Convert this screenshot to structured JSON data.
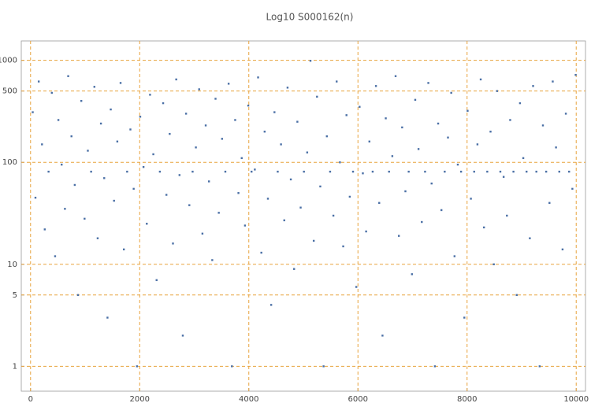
{
  "chart_data": {
    "type": "scatter",
    "title": "Log10 S000162(n)",
    "x": [
      40,
      90,
      150,
      210,
      260,
      330,
      390,
      450,
      510,
      570,
      630,
      690,
      750,
      810,
      870,
      930,
      990,
      1050,
      1110,
      1170,
      1230,
      1290,
      1350,
      1410,
      1470,
      1530,
      1590,
      1650,
      1710,
      1770,
      1830,
      1890,
      1950,
      2010,
      2070,
      2130,
      2190,
      2250,
      2310,
      2370,
      2430,
      2490,
      2550,
      2610,
      2670,
      2730,
      2790,
      2850,
      2910,
      2970,
      3030,
      3090,
      3150,
      3210,
      3270,
      3330,
      3390,
      3450,
      3510,
      3570,
      3630,
      3690,
      3750,
      3810,
      3870,
      3930,
      3990,
      4050,
      4110,
      4170,
      4230,
      4290,
      4350,
      4410,
      4470,
      4530,
      4590,
      4650,
      4710,
      4770,
      4830,
      4890,
      4950,
      5010,
      5070,
      5130,
      5190,
      5250,
      5310,
      5370,
      5430,
      5490,
      5550,
      5610,
      5670,
      5730,
      5790,
      5850,
      5910,
      5970,
      6030,
      6090,
      6150,
      6210,
      6270,
      6330,
      6390,
      6450,
      6510,
      6570,
      6630,
      6690,
      6750,
      6810,
      6870,
      6930,
      6990,
      7050,
      7110,
      7170,
      7230,
      7290,
      7350,
      7410,
      7470,
      7530,
      7590,
      7650,
      7710,
      7770,
      7830,
      7890,
      7950,
      8010,
      8070,
      8130,
      8190,
      8250,
      8310,
      8370,
      8430,
      8490,
      8550,
      8610,
      8670,
      8730,
      8790,
      8850,
      8910,
      8970,
      9030,
      9090,
      9150,
      9210,
      9270,
      9330,
      9390,
      9450,
      9510,
      9570,
      9630,
      9690,
      9750,
      9810,
      9870,
      9930,
      9990
    ],
    "values": [
      310,
      45,
      620,
      150,
      22,
      81,
      480,
      12,
      260,
      95,
      35,
      700,
      180,
      60,
      5,
      400,
      28,
      130,
      81,
      550,
      18,
      240,
      70,
      3,
      330,
      42,
      160,
      600,
      14,
      81,
      210,
      55,
      1,
      280,
      90,
      25,
      460,
      120,
      7,
      81,
      380,
      48,
      190,
      16,
      650,
      75,
      2,
      300,
      38,
      81,
      140,
      520,
      20,
      230,
      65,
      11,
      420,
      32,
      170,
      81,
      590,
      1,
      260,
      50,
      110,
      24,
      360,
      81,
      85,
      680,
      13,
      200,
      44,
      4,
      310,
      81,
      150,
      27,
      540,
      68,
      9,
      250,
      36,
      81,
      125,
      990,
      17,
      440,
      58,
      1,
      180,
      81,
      30,
      620,
      100,
      15,
      290,
      46,
      81,
      6,
      350,
      78,
      21,
      160,
      81,
      560,
      40,
      2,
      270,
      81,
      115,
      700,
      19,
      220,
      52,
      81,
      8,
      410,
      135,
      26,
      81,
      600,
      62,
      1,
      240,
      34,
      81,
      175,
      480,
      12,
      95,
      81,
      3,
      320,
      44,
      81,
      150,
      650,
      23,
      81,
      200,
      10,
      500,
      81,
      72,
      30,
      260,
      81,
      5,
      380,
      110,
      81,
      18,
      560,
      81,
      1,
      230,
      81,
      40,
      620,
      140,
      81,
      14,
      300,
      81,
      55,
      720
    ],
    "color": "#4a6fa5",
    "xlim": [
      -170,
      10170
    ],
    "ylim": [
      0.57,
      1550
    ],
    "ylog": true,
    "xticks": [
      0,
      2000,
      4000,
      6000,
      8000,
      10000
    ],
    "yticks": [
      1,
      5,
      10,
      100,
      500,
      1000
    ],
    "grid": true,
    "grid_color": "#e8a33d"
  }
}
